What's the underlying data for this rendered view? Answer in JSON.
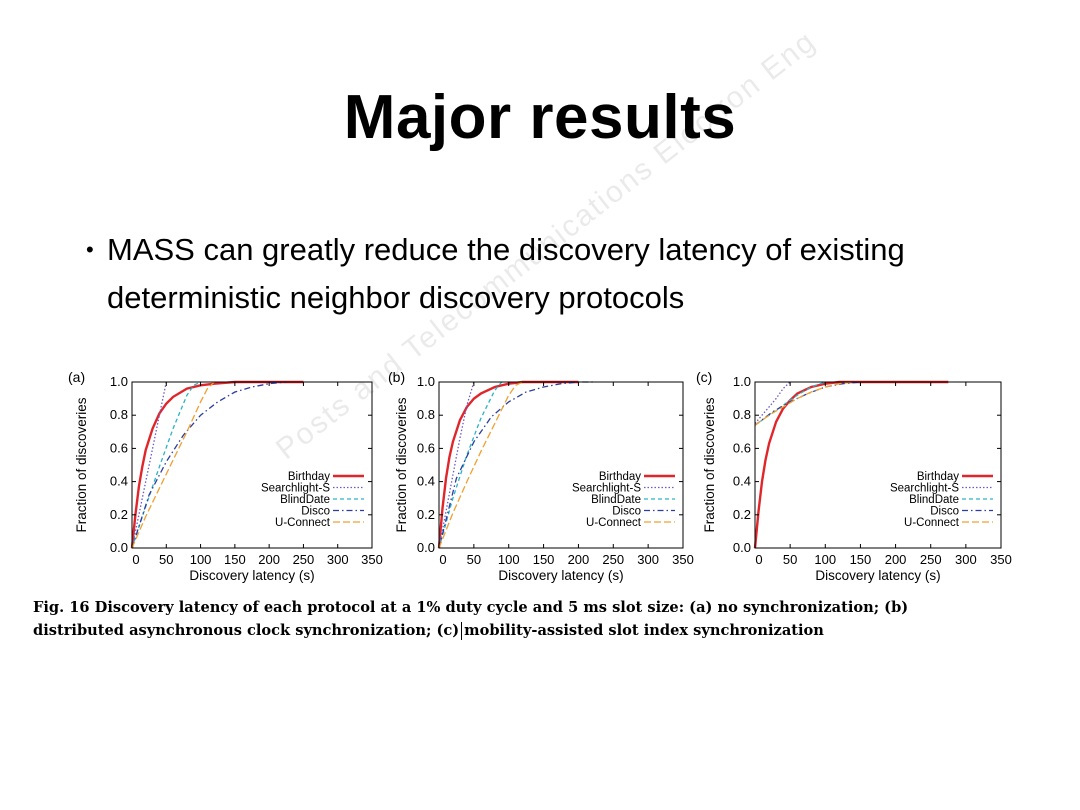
{
  "slide": {
    "title": "Major results",
    "bullet": "MASS can greatly reduce the discovery latency of existing deterministic neighbor discovery protocols",
    "watermark": "Posts and Telecommunications Electron Eng",
    "caption_line1": "Fig. 16  Discovery latency of each protocol at a 1% duty cycle and 5 ms slot size: (a) no synchronization; (b)",
    "caption_line2a": "distributed asynchronous clock synchronization; (c)",
    "caption_line2b": "mobility-assisted slot index synchronization"
  },
  "chart_data": [
    {
      "type": "line",
      "panel_label": "(a)",
      "xlabel": "Discovery latency (s)",
      "ylabel": "Fraction of discoveries",
      "xlim": [
        0,
        350
      ],
      "ylim": [
        0,
        1.0
      ],
      "xticks": [
        0,
        50,
        100,
        150,
        200,
        250,
        300,
        350
      ],
      "yticks": [
        0.0,
        0.2,
        0.4,
        0.6,
        0.8,
        1.0
      ],
      "legend": "bottom-right",
      "series": [
        {
          "name": "Birthday",
          "color": "#e0262a",
          "dash": "solid",
          "x": [
            0,
            5,
            10,
            15,
            20,
            30,
            40,
            50,
            60,
            80,
            100,
            120,
            150,
            180,
            200,
            250
          ],
          "y": [
            0,
            0.2,
            0.37,
            0.49,
            0.59,
            0.72,
            0.81,
            0.87,
            0.91,
            0.96,
            0.98,
            0.99,
            1.0,
            1.0,
            1.0,
            1.0
          ]
        },
        {
          "name": "Searchlight-S",
          "color": "#6a5acd",
          "dash": "dot",
          "x": [
            0,
            10,
            20,
            30,
            40,
            50
          ],
          "y": [
            0,
            0.2,
            0.4,
            0.6,
            0.8,
            1.0
          ]
        },
        {
          "name": "BlindDate",
          "color": "#2ab3c5",
          "dash": "dash",
          "x": [
            0,
            20,
            40,
            60,
            80,
            90,
            100
          ],
          "y": [
            0,
            0.25,
            0.49,
            0.72,
            0.92,
            0.98,
            1.0
          ]
        },
        {
          "name": "Disco",
          "color": "#2b3ea0",
          "dash": "dashdot",
          "x": [
            0,
            25,
            50,
            75,
            100,
            125,
            150,
            175,
            200,
            225
          ],
          "y": [
            0,
            0.32,
            0.52,
            0.68,
            0.8,
            0.88,
            0.94,
            0.97,
            0.99,
            1.0
          ]
        },
        {
          "name": "U-Connect",
          "color": "#f0a030",
          "dash": "longdash",
          "x": [
            0,
            20,
            40,
            60,
            80,
            100,
            110,
            120
          ],
          "y": [
            0,
            0.19,
            0.36,
            0.53,
            0.7,
            0.88,
            0.96,
            1.0
          ]
        }
      ]
    },
    {
      "type": "line",
      "panel_label": "(b)",
      "xlabel": "Discovery latency (s)",
      "ylabel": "Fraction of discoveries",
      "xlim": [
        0,
        350
      ],
      "ylim": [
        0,
        1.0
      ],
      "xticks": [
        0,
        50,
        100,
        150,
        200,
        250,
        300,
        350
      ],
      "yticks": [
        0.0,
        0.2,
        0.4,
        0.6,
        0.8,
        1.0
      ],
      "legend": "bottom-right",
      "series": [
        {
          "name": "Birthday",
          "color": "#e0262a",
          "dash": "solid",
          "x": [
            0,
            5,
            10,
            15,
            20,
            30,
            40,
            50,
            60,
            80,
            100,
            120,
            150,
            180,
            200
          ],
          "y": [
            0,
            0.24,
            0.42,
            0.55,
            0.64,
            0.77,
            0.85,
            0.9,
            0.93,
            0.97,
            0.99,
            1.0,
            1.0,
            1.0,
            1.0
          ]
        },
        {
          "name": "Searchlight-S",
          "color": "#6a5acd",
          "dash": "dot",
          "x": [
            0,
            10,
            20,
            30,
            40,
            50
          ],
          "y": [
            0,
            0.22,
            0.44,
            0.66,
            0.86,
            1.0
          ]
        },
        {
          "name": "BlindDate",
          "color": "#2ab3c5",
          "dash": "dash",
          "x": [
            0,
            20,
            40,
            60,
            80,
            90
          ],
          "y": [
            0,
            0.3,
            0.56,
            0.78,
            0.95,
            1.0
          ]
        },
        {
          "name": "Disco",
          "color": "#2b3ea0",
          "dash": "dashdot",
          "x": [
            0,
            25,
            50,
            75,
            100,
            125,
            150,
            175,
            200,
            225
          ],
          "y": [
            0,
            0.42,
            0.64,
            0.79,
            0.88,
            0.94,
            0.97,
            0.99,
            1.0,
            1.0
          ]
        },
        {
          "name": "U-Connect",
          "color": "#f0a030",
          "dash": "longdash",
          "x": [
            0,
            20,
            40,
            60,
            80,
            100,
            110,
            120
          ],
          "y": [
            0,
            0.21,
            0.4,
            0.58,
            0.75,
            0.92,
            0.98,
            1.0
          ]
        }
      ]
    },
    {
      "type": "line",
      "panel_label": "(c)",
      "xlabel": "Discovery latency (s)",
      "ylabel": "Fraction of discoveries",
      "xlim": [
        0,
        350
      ],
      "ylim": [
        0,
        1.0
      ],
      "xticks": [
        0,
        50,
        100,
        150,
        200,
        250,
        300,
        350
      ],
      "yticks": [
        0.0,
        0.2,
        0.4,
        0.6,
        0.8,
        1.0
      ],
      "legend": "bottom-right",
      "series": [
        {
          "name": "Birthday",
          "color": "#e0262a",
          "dash": "solid",
          "x": [
            0,
            5,
            10,
            15,
            20,
            30,
            40,
            50,
            60,
            80,
            100,
            120,
            150,
            200,
            250,
            275
          ],
          "y": [
            0,
            0.22,
            0.4,
            0.53,
            0.63,
            0.76,
            0.84,
            0.89,
            0.93,
            0.97,
            0.99,
            1.0,
            1.0,
            1.0,
            1.0,
            1.0
          ]
        },
        {
          "name": "Searchlight-S",
          "color": "#6a5acd",
          "dash": "dot",
          "x": [
            0,
            10,
            20,
            30,
            40,
            50
          ],
          "y": [
            0.75,
            0.8,
            0.85,
            0.9,
            0.96,
            1.0
          ]
        },
        {
          "name": "BlindDate",
          "color": "#2ab3c5",
          "dash": "dash",
          "x": [
            0,
            20,
            40,
            60,
            80,
            100
          ],
          "y": [
            0.74,
            0.8,
            0.86,
            0.92,
            0.97,
            1.0
          ]
        },
        {
          "name": "Disco",
          "color": "#2b3ea0",
          "dash": "dashdot",
          "x": [
            0,
            25,
            50,
            75,
            100,
            125,
            150
          ],
          "y": [
            0.74,
            0.82,
            0.88,
            0.93,
            0.97,
            0.99,
            1.0
          ]
        },
        {
          "name": "U-Connect",
          "color": "#f0a030",
          "dash": "longdash",
          "x": [
            0,
            20,
            40,
            60,
            80,
            100,
            120,
            140
          ],
          "y": [
            0.74,
            0.8,
            0.85,
            0.9,
            0.94,
            0.97,
            0.99,
            1.0
          ]
        }
      ]
    }
  ]
}
